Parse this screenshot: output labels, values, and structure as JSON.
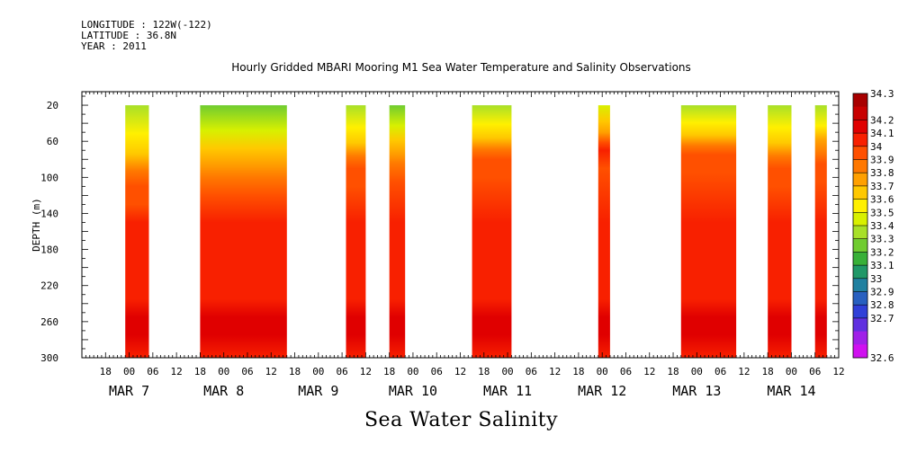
{
  "header": {
    "longitude": "LONGITUDE : 122W(-122)",
    "latitude": "LATITUDE : 36.8N",
    "year": "YEAR : 2011"
  },
  "title": "Hourly Gridded MBARI Mooring M1 Sea Water Temperature and Salinity Observations",
  "caption": "Sea Water Salinity",
  "chart_data": {
    "type": "heatmap",
    "variable": "Sea Water Salinity",
    "ylabel": "DEPTH (m)",
    "y_axis": {
      "ticks": [
        20,
        60,
        100,
        140,
        180,
        220,
        260,
        300
      ],
      "range": [
        300,
        5
      ],
      "inverted": true
    },
    "x_axis": {
      "hour_ticks": [
        "18",
        "00",
        "06",
        "12",
        "18",
        "00",
        "06",
        "12",
        "18",
        "00",
        "06",
        "12",
        "18",
        "00",
        "06",
        "12",
        "18",
        "00",
        "06",
        "12",
        "18",
        "00",
        "06",
        "12",
        "18",
        "00",
        "06",
        "12",
        "18",
        "00",
        "06",
        "12"
      ],
      "date_labels": [
        "MAR 7",
        "MAR 8",
        "MAR 9",
        "MAR 10",
        "MAR 11",
        "MAR 12",
        "MAR 13",
        "MAR 14"
      ],
      "range": [
        "2011-03-06T12:00",
        "2011-03-14T12:00"
      ]
    },
    "data_segments": [
      {
        "start": "2011-03-06T23:00",
        "end": "2011-03-07T05:00",
        "top_salinity": 33.4,
        "mixed_depth": 110
      },
      {
        "start": "2011-03-07T18:00",
        "end": "2011-03-08T16:00",
        "top_salinity": 33.35,
        "mixed_depth": 100
      },
      {
        "start": "2011-03-09T07:00",
        "end": "2011-03-09T12:00",
        "top_salinity": 33.4,
        "mixed_depth": 90
      },
      {
        "start": "2011-03-09T18:00",
        "end": "2011-03-09T22:00",
        "top_salinity": 33.35,
        "mixed_depth": 85
      },
      {
        "start": "2011-03-10T15:00",
        "end": "2011-03-11T01:00",
        "top_salinity": 33.4,
        "mixed_depth": 80
      },
      {
        "start": "2011-03-11T23:00",
        "end": "2011-03-12T02:00",
        "top_salinity": 33.5,
        "mixed_depth": 70
      },
      {
        "start": "2011-03-12T20:00",
        "end": "2011-03-13T10:00",
        "top_salinity": 33.4,
        "mixed_depth": 75
      },
      {
        "start": "2011-03-13T18:00",
        "end": "2011-03-14T00:00",
        "top_salinity": 33.4,
        "mixed_depth": 90
      },
      {
        "start": "2011-03-14T06:00",
        "end": "2011-03-14T09:00",
        "top_salinity": 33.45,
        "mixed_depth": 85
      }
    ],
    "colorbar": {
      "levels": [
        34.3,
        34.2,
        34.1,
        34,
        33.9,
        33.8,
        33.7,
        33.6,
        33.5,
        33.4,
        33.3,
        33.2,
        33.1,
        33,
        32.9,
        32.8,
        32.7,
        32.6
      ],
      "colors": [
        "#a80000",
        "#c80000",
        "#e00000",
        "#f82000",
        "#ff5000",
        "#ff7800",
        "#ffa000",
        "#ffc800",
        "#fff000",
        "#d8f000",
        "#a8e028",
        "#70cc30",
        "#38b038",
        "#209868",
        "#2080a0",
        "#2860c0",
        "#3040d8",
        "#6030e0",
        "#a020e8",
        "#d010f0"
      ]
    },
    "grid": false,
    "legend": "colorbar-right"
  }
}
